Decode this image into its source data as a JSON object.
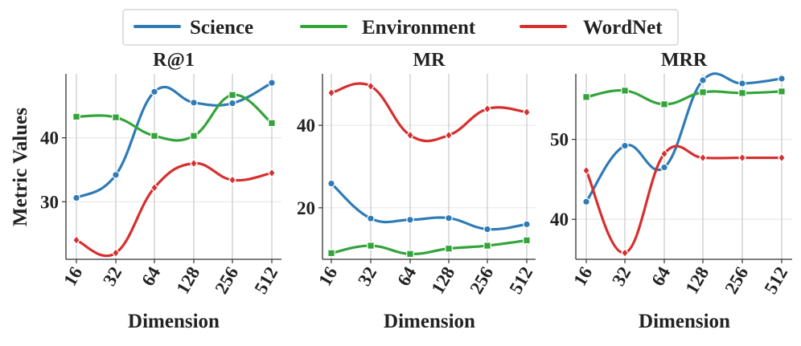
{
  "colors": {
    "Science": "#2e7bb6",
    "Environment": "#33a43a",
    "WordNet": "#d62f2f",
    "grid": "#e8e8e8",
    "vgrid": "#cccccc",
    "axis": "#333333"
  },
  "legend": [
    "Science",
    "Environment",
    "WordNet"
  ],
  "labels": {
    "ylabel": "Metric Values",
    "xlabel": "Dimension"
  },
  "chart_data": [
    {
      "type": "line",
      "title": "R@1",
      "xlabel": "Dimension",
      "ylabel": "Metric Values",
      "categories": [
        "16",
        "32",
        "64",
        "128",
        "256",
        "512"
      ],
      "yticks": [
        30,
        40
      ],
      "ylim": [
        21,
        50
      ],
      "grid": true,
      "series": [
        {
          "name": "Science",
          "marker": "circle",
          "values": [
            30.6,
            34.2,
            47.2,
            45.5,
            45.4,
            48.6
          ]
        },
        {
          "name": "Environment",
          "marker": "square",
          "values": [
            43.3,
            43.2,
            40.3,
            40.3,
            46.7,
            42.3
          ]
        },
        {
          "name": "WordNet",
          "marker": "diamond",
          "values": [
            24.0,
            22.0,
            32.2,
            36.0,
            33.4,
            34.5
          ]
        }
      ]
    },
    {
      "type": "line",
      "title": "MR",
      "xlabel": "Dimension",
      "categories": [
        "16",
        "32",
        "64",
        "128",
        "256",
        "512"
      ],
      "yticks": [
        20,
        40
      ],
      "ylim": [
        7.5,
        52.5
      ],
      "grid": true,
      "series": [
        {
          "name": "Science",
          "marker": "circle",
          "values": [
            25.9,
            17.4,
            17.1,
            17.5,
            14.8,
            16.0
          ]
        },
        {
          "name": "Environment",
          "marker": "square",
          "values": [
            9.0,
            10.8,
            8.8,
            10.1,
            10.8,
            12.1
          ]
        },
        {
          "name": "WordNet",
          "marker": "diamond",
          "values": [
            47.9,
            49.5,
            37.6,
            37.6,
            44.0,
            43.2
          ]
        }
      ]
    },
    {
      "type": "line",
      "title": "MRR",
      "xlabel": "Dimension",
      "categories": [
        "16",
        "32",
        "64",
        "128",
        "256",
        "512"
      ],
      "yticks": [
        40,
        50
      ],
      "ylim": [
        35,
        58.2
      ],
      "grid": true,
      "series": [
        {
          "name": "Science",
          "marker": "circle",
          "values": [
            42.2,
            49.2,
            46.5,
            57.4,
            57.0,
            57.6
          ]
        },
        {
          "name": "Environment",
          "marker": "square",
          "values": [
            55.3,
            56.1,
            54.4,
            55.9,
            55.8,
            56.0
          ]
        },
        {
          "name": "WordNet",
          "marker": "diamond",
          "values": [
            46.1,
            35.8,
            48.2,
            47.7,
            47.7,
            47.7
          ]
        }
      ]
    }
  ]
}
